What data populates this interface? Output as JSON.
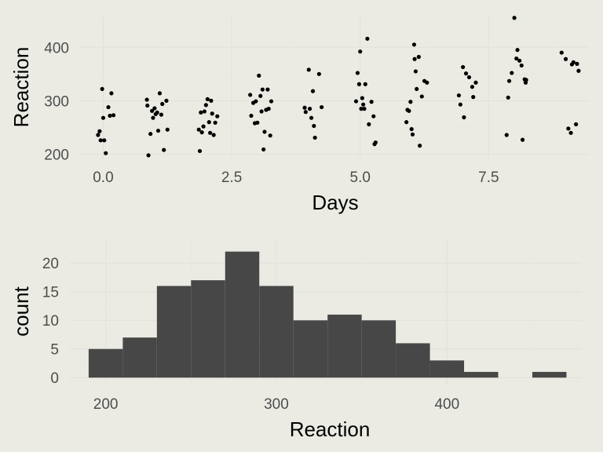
{
  "chart_data": [
    {
      "type": "scatter",
      "xlabel": "Days",
      "ylabel": "Reaction",
      "xlim": [
        -0.45,
        9.45
      ],
      "ylim": [
        192,
        462
      ],
      "x_ticks": [
        0,
        2.5,
        5,
        7.5
      ],
      "x_tick_labels": [
        "0.0",
        "2.5",
        "5.0",
        "7.5"
      ],
      "y_ticks": [
        200,
        300,
        400
      ],
      "y_tick_labels": [
        "200",
        "300",
        "400"
      ],
      "grid": true,
      "legend": "none",
      "points": [
        [
          -0.1,
          236
        ],
        [
          -0.07,
          243
        ],
        [
          -0.05,
          226
        ],
        [
          -0.02,
          322
        ],
        [
          0.0,
          268
        ],
        [
          0.02,
          226
        ],
        [
          0.05,
          202
        ],
        [
          0.1,
          288
        ],
        [
          0.13,
          272
        ],
        [
          0.16,
          314
        ],
        [
          0.2,
          273
        ],
        [
          0.85,
          302
        ],
        [
          0.86,
          291
        ],
        [
          0.88,
          198
        ],
        [
          0.92,
          238
        ],
        [
          0.95,
          281
        ],
        [
          0.97,
          268
        ],
        [
          1.0,
          286
        ],
        [
          1.02,
          275
        ],
        [
          1.05,
          278
        ],
        [
          1.07,
          244
        ],
        [
          1.1,
          314
        ],
        [
          1.13,
          274
        ],
        [
          1.15,
          294
        ],
        [
          1.18,
          208
        ],
        [
          1.23,
          300
        ],
        [
          1.25,
          246
        ],
        [
          1.86,
          246
        ],
        [
          1.88,
          206
        ],
        [
          1.9,
          278
        ],
        [
          1.92,
          241
        ],
        [
          1.95,
          252
        ],
        [
          1.97,
          280
        ],
        [
          2.0,
          292
        ],
        [
          2.03,
          303
        ],
        [
          2.06,
          260
        ],
        [
          2.08,
          240
        ],
        [
          2.1,
          300
        ],
        [
          2.12,
          276
        ],
        [
          2.15,
          236
        ],
        [
          2.18,
          259
        ],
        [
          2.22,
          271
        ],
        [
          2.86,
          311
        ],
        [
          2.88,
          272
        ],
        [
          2.92,
          296
        ],
        [
          2.95,
          258
        ],
        [
          2.97,
          299
        ],
        [
          3.0,
          259
        ],
        [
          3.03,
          347
        ],
        [
          3.06,
          309
        ],
        [
          3.08,
          280
        ],
        [
          3.1,
          321
        ],
        [
          3.12,
          209
        ],
        [
          3.14,
          242
        ],
        [
          3.17,
          283
        ],
        [
          3.2,
          321
        ],
        [
          3.22,
          285
        ],
        [
          3.25,
          235
        ],
        [
          3.27,
          299
        ],
        [
          3.92,
          287
        ],
        [
          3.94,
          279
        ],
        [
          4.0,
          358
        ],
        [
          4.02,
          285
        ],
        [
          4.05,
          268
        ],
        [
          4.08,
          318
        ],
        [
          4.1,
          253
        ],
        [
          4.12,
          231
        ],
        [
          4.2,
          350
        ],
        [
          4.25,
          288
        ],
        [
          4.92,
          299
        ],
        [
          4.95,
          352
        ],
        [
          4.98,
          331
        ],
        [
          5.0,
          392
        ],
        [
          5.02,
          285
        ],
        [
          5.04,
          305
        ],
        [
          5.06,
          293
        ],
        [
          5.08,
          285
        ],
        [
          5.1,
          331
        ],
        [
          5.14,
          416
        ],
        [
          5.17,
          256
        ],
        [
          5.22,
          298
        ],
        [
          5.26,
          271
        ],
        [
          5.28,
          219
        ],
        [
          5.3,
          222
        ],
        [
          5.9,
          260
        ],
        [
          5.92,
          283
        ],
        [
          5.95,
          281
        ],
        [
          5.98,
          298
        ],
        [
          6.0,
          247
        ],
        [
          6.02,
          237
        ],
        [
          6.05,
          405
        ],
        [
          6.06,
          378
        ],
        [
          6.08,
          355
        ],
        [
          6.1,
          322
        ],
        [
          6.14,
          382
        ],
        [
          6.16,
          216
        ],
        [
          6.2,
          308
        ],
        [
          6.25,
          337
        ],
        [
          6.3,
          334
        ],
        [
          6.92,
          310
        ],
        [
          6.95,
          293
        ],
        [
          7.0,
          363
        ],
        [
          7.02,
          269
        ],
        [
          7.06,
          351
        ],
        [
          7.12,
          344
        ],
        [
          7.18,
          326
        ],
        [
          7.2,
          307
        ],
        [
          7.25,
          334
        ],
        [
          7.85,
          236
        ],
        [
          7.88,
          306
        ],
        [
          7.9,
          337
        ],
        [
          7.95,
          352
        ],
        [
          8.0,
          455
        ],
        [
          8.04,
          379
        ],
        [
          8.06,
          395
        ],
        [
          8.1,
          375
        ],
        [
          8.14,
          366
        ],
        [
          8.16,
          227
        ],
        [
          8.2,
          340
        ],
        [
          8.22,
          334
        ],
        [
          8.23,
          339
        ],
        [
          8.92,
          390
        ],
        [
          9.0,
          378
        ],
        [
          9.05,
          248
        ],
        [
          9.1,
          240
        ],
        [
          9.12,
          368
        ],
        [
          9.15,
          372
        ],
        [
          9.2,
          256
        ],
        [
          9.22,
          369
        ],
        [
          9.25,
          356
        ]
      ]
    },
    {
      "type": "bar",
      "subtype": "histogram",
      "xlabel": "Reaction",
      "ylabel": "count",
      "xlim": [
        179,
        479
      ],
      "ylim": [
        -1.2,
        24
      ],
      "x_ticks": [
        200,
        300,
        400
      ],
      "x_tick_labels": [
        "200",
        "300",
        "400"
      ],
      "y_ticks": [
        0,
        5,
        10,
        15,
        20
      ],
      "y_tick_labels": [
        "0",
        "5",
        "10",
        "15",
        "20"
      ],
      "grid": true,
      "legend": "none",
      "bin_edges": [
        190,
        210,
        230,
        250,
        270,
        290,
        310,
        330,
        350,
        370,
        390,
        410,
        430,
        450,
        470
      ],
      "values": [
        5,
        7,
        16,
        17,
        22,
        16,
        10,
        11,
        10,
        6,
        3,
        1,
        0,
        1
      ]
    }
  ]
}
